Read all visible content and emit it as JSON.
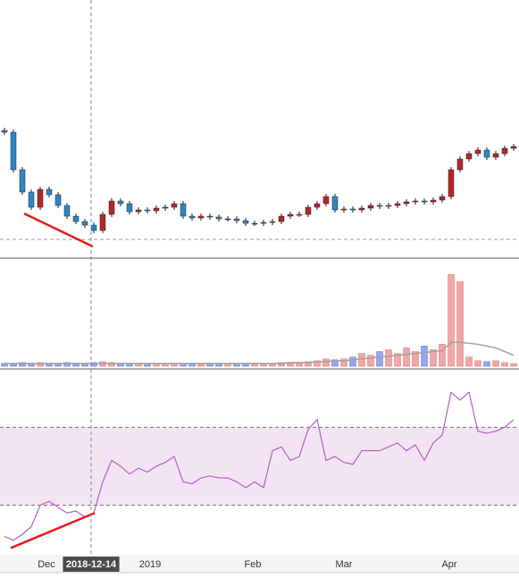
{
  "chart_data": [
    {
      "type": "candlestick",
      "open": [
        142,
        140,
        98,
        73,
        56,
        76,
        70,
        58,
        46,
        40,
        36,
        30,
        48,
        63,
        60,
        51,
        53,
        52,
        55,
        56,
        60,
        46,
        44,
        46,
        45,
        43,
        43,
        41,
        38,
        38,
        39,
        40,
        46,
        48,
        48,
        56,
        60,
        68,
        53,
        54,
        53,
        55,
        58,
        57,
        58,
        60,
        62,
        63,
        62,
        64,
        68,
        98,
        110,
        116,
        120,
        112,
        116,
        122
      ],
      "high": [
        145,
        143,
        101,
        76,
        79,
        79,
        73,
        61,
        49,
        43,
        39,
        51,
        66,
        66,
        63,
        56,
        56,
        58,
        59,
        63,
        63,
        49,
        49,
        49,
        48,
        46,
        46,
        44,
        41,
        42,
        43,
        49,
        51,
        51,
        59,
        63,
        71,
        71,
        57,
        57,
        58,
        61,
        61,
        61,
        63,
        65,
        66,
        66,
        67,
        71,
        101,
        113,
        119,
        123,
        123,
        119,
        125,
        127
      ],
      "low": [
        137,
        95,
        70,
        53,
        53,
        67,
        55,
        43,
        37,
        33,
        27,
        27,
        45,
        57,
        48,
        48,
        49,
        49,
        52,
        53,
        43,
        41,
        41,
        42,
        40,
        40,
        38,
        35,
        35,
        35,
        36,
        37,
        43,
        45,
        45,
        53,
        57,
        50,
        50,
        50,
        50,
        52,
        54,
        54,
        55,
        57,
        59,
        59,
        59,
        61,
        65,
        95,
        107,
        113,
        109,
        109,
        113,
        119
      ],
      "close": [
        140,
        98,
        73,
        56,
        76,
        70,
        58,
        46,
        40,
        36,
        30,
        48,
        63,
        60,
        51,
        53,
        52,
        55,
        56,
        60,
        46,
        44,
        46,
        45,
        43,
        43,
        41,
        38,
        38,
        39,
        40,
        46,
        48,
        48,
        56,
        60,
        68,
        53,
        54,
        53,
        55,
        58,
        57,
        58,
        60,
        62,
        63,
        62,
        64,
        68,
        98,
        110,
        116,
        120,
        112,
        116,
        122,
        124
      ],
      "up_color": "#b5262a",
      "down_color": "#2f86c6",
      "ylim": [
        0,
        288
      ],
      "level": 20,
      "trendline": {
        "x": [
          2.2,
          9.9
        ],
        "y": [
          49,
          12
        ],
        "color": "#e8191b"
      },
      "xlim": [
        -0.5,
        57.6
      ],
      "xticks": [
        {
          "value": 4.7,
          "label": "Dec"
        },
        {
          "value": 16.3,
          "label": "2019"
        },
        {
          "value": 27.8,
          "label": "Feb"
        },
        {
          "value": 38,
          "label": "Mar"
        },
        {
          "value": 49.8,
          "label": "Apr"
        }
      ],
      "crosshair": {
        "value": 9.7,
        "label": "2018-12-14"
      }
    },
    {
      "type": "bar",
      "values": [
        3,
        3,
        4,
        3,
        4,
        3,
        3,
        4,
        3,
        3,
        4,
        5,
        4,
        3,
        3,
        3,
        3,
        3,
        3,
        3,
        3,
        3,
        3,
        3,
        3,
        3,
        3,
        3,
        3,
        3,
        3,
        4,
        4,
        4,
        5,
        6,
        8,
        7,
        8,
        10,
        14,
        12,
        16,
        18,
        14,
        20,
        16,
        22,
        18,
        24,
        100,
        92,
        10,
        6,
        5,
        6,
        4,
        3
      ],
      "ma": [
        3,
        3,
        3,
        3,
        3,
        3,
        3,
        3,
        3,
        3,
        3,
        3,
        3,
        3,
        3,
        3,
        3,
        3,
        3,
        3,
        3,
        3,
        3,
        3,
        3,
        3,
        3,
        3,
        3,
        3,
        3,
        3,
        4,
        4,
        4,
        5,
        5,
        6,
        6,
        7,
        8,
        9,
        10,
        11,
        12,
        13,
        14,
        15,
        16,
        17,
        26,
        26,
        25,
        24,
        22,
        20,
        16,
        12
      ],
      "ylim": [
        0,
        105
      ],
      "up_color": "#f2a7a4",
      "down_color": "#96a6ee",
      "ma_color": "#a0a0a0"
    },
    {
      "type": "line",
      "values": [
        14,
        12,
        15,
        19,
        30,
        32,
        29,
        26,
        27,
        24,
        26,
        42,
        53,
        50,
        46,
        49,
        47,
        50,
        52,
        55,
        42,
        41,
        44,
        45,
        44,
        44,
        42,
        39,
        42,
        39,
        58,
        60,
        53,
        55,
        69,
        74,
        53,
        55,
        52,
        51,
        58,
        58,
        58,
        60,
        62,
        58,
        61,
        53,
        62,
        66,
        88,
        84,
        88,
        68,
        67,
        68,
        70,
        74
      ],
      "ylim": [
        5,
        100
      ],
      "bands": [
        30,
        70
      ],
      "color": "#b060c0",
      "band_color": "#f3e4f3",
      "trendline": {
        "x": [
          0.7,
          10.1
        ],
        "y": [
          8,
          26
        ],
        "color": "#e8191b"
      }
    }
  ]
}
